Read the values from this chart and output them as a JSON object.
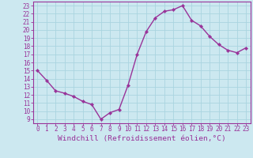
{
  "x": [
    0,
    1,
    2,
    3,
    4,
    5,
    6,
    7,
    8,
    9,
    10,
    11,
    12,
    13,
    14,
    15,
    16,
    17,
    18,
    19,
    20,
    21,
    22,
    23
  ],
  "y": [
    15,
    13.8,
    12.5,
    12.2,
    11.8,
    11.2,
    10.8,
    9.0,
    9.8,
    10.2,
    13.2,
    17.0,
    19.8,
    21.5,
    22.3,
    22.5,
    23.0,
    21.2,
    20.5,
    19.2,
    18.2,
    17.5,
    17.2,
    17.8
  ],
  "line_color": "#993399",
  "marker": "D",
  "marker_size": 2.2,
  "bg_color": "#cce8f0",
  "grid_color": "#aad4e0",
  "xlabel": "Windchill (Refroidissement éolien,°C)",
  "xlabel_color": "#993399",
  "tick_color": "#993399",
  "xlim": [
    -0.5,
    23.5
  ],
  "ylim": [
    8.5,
    23.5
  ],
  "yticks": [
    9,
    10,
    11,
    12,
    13,
    14,
    15,
    16,
    17,
    18,
    19,
    20,
    21,
    22,
    23
  ],
  "xticks": [
    0,
    1,
    2,
    3,
    4,
    5,
    6,
    7,
    8,
    9,
    10,
    11,
    12,
    13,
    14,
    15,
    16,
    17,
    18,
    19,
    20,
    21,
    22,
    23
  ],
  "tick_fontsize": 5.5,
  "xlabel_fontsize": 6.8,
  "line_width": 1.0,
  "border_color": "#993399"
}
